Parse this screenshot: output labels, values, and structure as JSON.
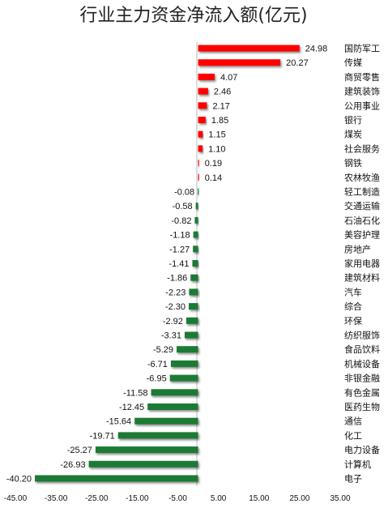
{
  "chart_data": {
    "type": "bar",
    "orientation": "horizontal",
    "title": "行业主力资金净流入额(亿元)",
    "xlabel": "",
    "ylabel": "",
    "xlim": [
      -45,
      35
    ],
    "xticks": [
      "-45.00",
      "-35.00",
      "-25.00",
      "-15.00",
      "-5.00",
      "5.00",
      "15.00",
      "25.00",
      "35.00"
    ],
    "grid": false,
    "legend": "none",
    "colors": {
      "positive": "#ff0000",
      "negative": "#1a7a34"
    },
    "categories": [
      "国防军工",
      "传媒",
      "商贸零售",
      "建筑装饰",
      "公用事业",
      "银行",
      "煤炭",
      "社会服务",
      "钢铁",
      "农林牧渔",
      "轻工制造",
      "交通运输",
      "石油石化",
      "美容护理",
      "房地产",
      "家用电器",
      "建筑材料",
      "汽车",
      "综合",
      "环保",
      "纺织服饰",
      "食品饮料",
      "机械设备",
      "非银金融",
      "有色金属",
      "医药生物",
      "通信",
      "化工",
      "电力设备",
      "计算机",
      "电子"
    ],
    "values": [
      24.98,
      20.27,
      4.07,
      2.46,
      2.17,
      1.85,
      1.15,
      1.1,
      0.19,
      0.14,
      -0.08,
      -0.58,
      -0.82,
      -1.18,
      -1.27,
      -1.41,
      -1.86,
      -2.23,
      -2.3,
      -2.92,
      -3.31,
      -5.29,
      -6.71,
      -6.95,
      -11.58,
      -12.45,
      -15.64,
      -19.71,
      -25.27,
      -26.93,
      -40.2
    ],
    "value_labels": [
      "24.98",
      "20.27",
      "4.07",
      "2.46",
      "2.17",
      "1.85",
      "1.15",
      "1.10",
      "0.19",
      "0.14",
      "-0.08",
      "-0.58",
      "-0.82",
      "-1.18",
      "-1.27",
      "-1.41",
      "-1.86",
      "-2.23",
      "-2.30",
      "-2.92",
      "-3.31",
      "-5.29",
      "-6.71",
      "-6.95",
      "-11.58",
      "-12.45",
      "-15.64",
      "-19.71",
      "-25.27",
      "-26.93",
      "-40.20"
    ]
  }
}
